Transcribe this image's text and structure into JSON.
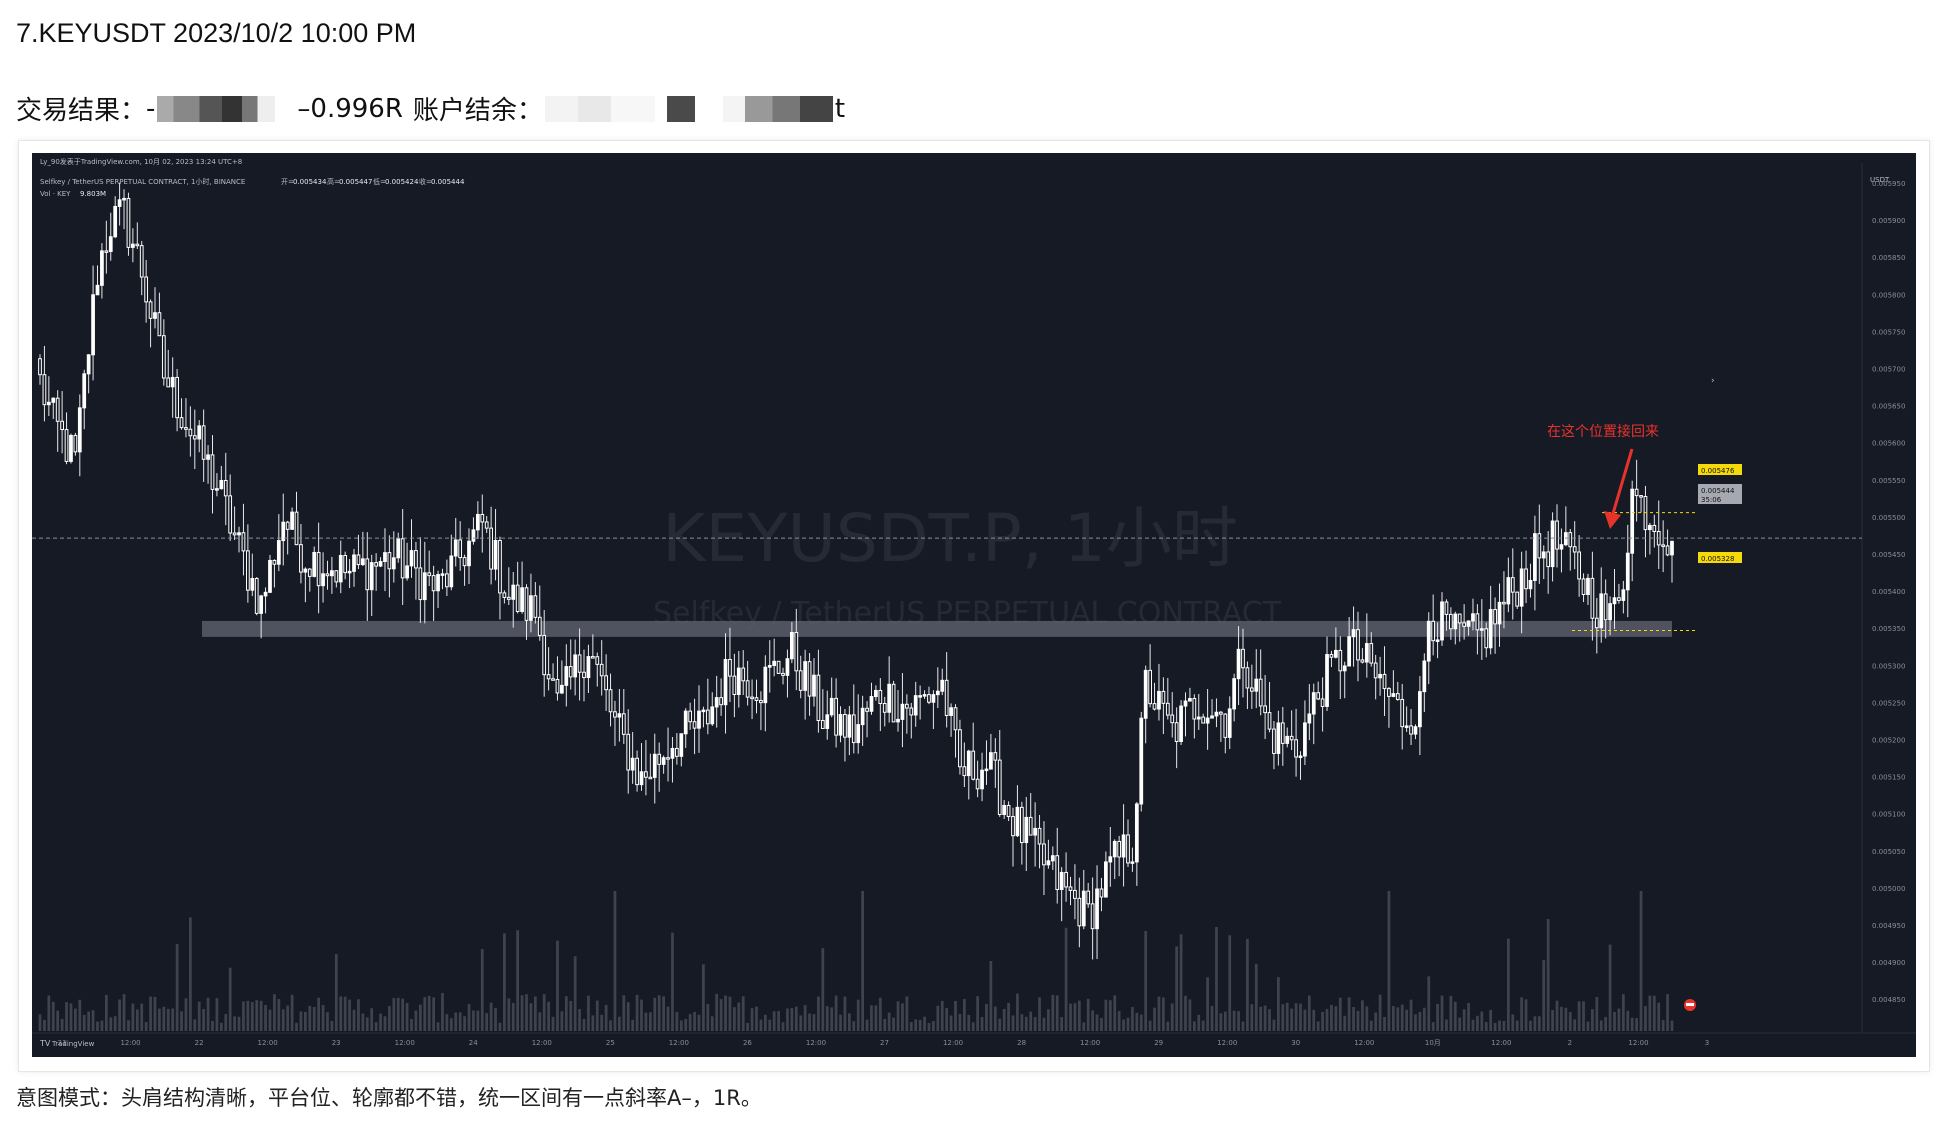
{
  "header": {
    "title": "7.KEYUSDT 2023/10/2 10:00 PM",
    "result_label": "交易结果：",
    "result_prefix": "-",
    "result_r": "–0.996R",
    "balance_label": "账户结余：",
    "balance_suffix": "t"
  },
  "chart_panel": {
    "top_info": "Ly_90发表于TradingView.com, 10月 02, 2023 13:24 UTC+8",
    "symbol_line_prefix": "Selfkey / TetherUS PERPETUAL CONTRACT, 1小时, BINANCE",
    "ohlc": [
      {
        "label": "开=",
        "value": "0.005434"
      },
      {
        "label": "高=",
        "value": "0.005447"
      },
      {
        "label": "低=",
        "value": "0.005424"
      },
      {
        "label": "收=",
        "value": "0.005444"
      }
    ],
    "volume_label": "Vol · KEY",
    "volume_value": "9.803M",
    "watermark_main": "KEYUSDT.P, 1小时",
    "watermark_sub": "Selfkey / TetherUS PERPETUAL CONTRACT",
    "axis_currency": "USDT",
    "annotation_text": "在这个位置接回来",
    "price_tag_resistance": "0.005476",
    "price_tag_current": "0.005444",
    "price_tag_countdown": "35:06",
    "price_tag_support": "0.005328",
    "logo_text": "TradingView",
    "colors": {
      "background": "#161a25",
      "candle": "#ffffff",
      "zone": "#5a5e6a",
      "annotation": "#e8332b",
      "tag_yellow": "#f5d90a"
    }
  },
  "chart_data": {
    "type": "candlestick",
    "title": "KEYUSDT.P, 1小时",
    "ylim": [
      0.004825,
      0.00588
    ],
    "y_ticks": [
      "0.005950",
      "0.005900",
      "0.005850",
      "0.005800",
      "0.005750",
      "0.005700",
      "0.005650",
      "0.005600",
      "0.005550",
      "0.005500",
      "0.005450",
      "0.005400",
      "0.005350",
      "0.005300",
      "0.005250",
      "0.005200",
      "0.005150",
      "0.005100",
      "0.005050",
      "0.005000",
      "0.004950",
      "0.004900",
      "0.004850"
    ],
    "x_ticks": [
      "21",
      "12:00",
      "22",
      "12:00",
      "23",
      "12:00",
      "24",
      "12:00",
      "25",
      "12:00",
      "26",
      "12:00",
      "27",
      "12:00",
      "28",
      "12:00",
      "29",
      "12:00",
      "30",
      "12:00",
      "10月",
      "12:00",
      "2",
      "12:00",
      "3"
    ],
    "zone": {
      "low": 0.00532,
      "high": 0.00534
    },
    "resistance_level": 0.005476,
    "support_level": 0.005328,
    "close_anchors": [
      {
        "bar": 0,
        "close": 0.00564
      },
      {
        "bar": 3,
        "close": 0.00559
      },
      {
        "bar": 8,
        "close": 0.00554
      },
      {
        "bar": 13,
        "close": 0.00578
      },
      {
        "bar": 16,
        "close": 0.00584
      },
      {
        "bar": 19,
        "close": 0.00585
      },
      {
        "bar": 23,
        "close": 0.00578
      },
      {
        "bar": 28,
        "close": 0.00565
      },
      {
        "bar": 34,
        "close": 0.00558
      },
      {
        "bar": 40,
        "close": 0.00551
      },
      {
        "bar": 45,
        "close": 0.00543
      },
      {
        "bar": 50,
        "close": 0.00536
      },
      {
        "bar": 55,
        "close": 0.00547
      },
      {
        "bar": 60,
        "close": 0.00542
      },
      {
        "bar": 70,
        "close": 0.0054
      },
      {
        "bar": 80,
        "close": 0.00542
      },
      {
        "bar": 90,
        "close": 0.00538
      },
      {
        "bar": 100,
        "close": 0.00546
      },
      {
        "bar": 106,
        "close": 0.00537
      },
      {
        "bar": 112,
        "close": 0.00535
      },
      {
        "bar": 117,
        "close": 0.00523
      },
      {
        "bar": 124,
        "close": 0.00531
      },
      {
        "bar": 130,
        "close": 0.00521
      },
      {
        "bar": 136,
        "close": 0.00514
      },
      {
        "bar": 143,
        "close": 0.00519
      },
      {
        "bar": 150,
        "close": 0.00521
      },
      {
        "bar": 156,
        "close": 0.00528
      },
      {
        "bar": 163,
        "close": 0.00526
      },
      {
        "bar": 170,
        "close": 0.0053
      },
      {
        "bar": 177,
        "close": 0.00522
      },
      {
        "bar": 184,
        "close": 0.0052
      },
      {
        "bar": 190,
        "close": 0.00525
      },
      {
        "bar": 197,
        "close": 0.00523
      },
      {
        "bar": 204,
        "close": 0.00526
      },
      {
        "bar": 208,
        "close": 0.00515
      },
      {
        "bar": 214,
        "close": 0.00516
      },
      {
        "bar": 220,
        "close": 0.00509
      },
      {
        "bar": 225,
        "close": 0.00505
      },
      {
        "bar": 232,
        "close": 0.005
      },
      {
        "bar": 237,
        "close": 0.00497
      },
      {
        "bar": 242,
        "close": 0.00503
      },
      {
        "bar": 247,
        "close": 0.00506
      },
      {
        "bar": 250,
        "close": 0.00526
      },
      {
        "bar": 256,
        "close": 0.0052
      },
      {
        "bar": 262,
        "close": 0.00524
      },
      {
        "bar": 268,
        "close": 0.00522
      },
      {
        "bar": 272,
        "close": 0.0053
      },
      {
        "bar": 278,
        "close": 0.0052
      },
      {
        "bar": 284,
        "close": 0.00518
      },
      {
        "bar": 290,
        "close": 0.00526
      },
      {
        "bar": 296,
        "close": 0.00531
      },
      {
        "bar": 302,
        "close": 0.00527
      },
      {
        "bar": 308,
        "close": 0.00522
      },
      {
        "bar": 312,
        "close": 0.00523
      },
      {
        "bar": 314,
        "close": 0.00535
      },
      {
        "bar": 320,
        "close": 0.00532
      },
      {
        "bar": 326,
        "close": 0.00532
      },
      {
        "bar": 332,
        "close": 0.00537
      },
      {
        "bar": 338,
        "close": 0.00542
      },
      {
        "bar": 342,
        "close": 0.00544
      },
      {
        "bar": 347,
        "close": 0.00541
      },
      {
        "bar": 352,
        "close": 0.00536
      },
      {
        "bar": 355,
        "close": 0.00534
      },
      {
        "bar": 358,
        "close": 0.0054
      },
      {
        "bar": 360,
        "close": 0.0055
      },
      {
        "bar": 363,
        "close": 0.00548
      },
      {
        "bar": 366,
        "close": 0.00546
      },
      {
        "bar": 369,
        "close": 0.00544
      }
    ]
  },
  "caption": "意图模式：头肩结构清晰，平台位、轮廓都不错，统一区间有一点斜率A–，1R。"
}
